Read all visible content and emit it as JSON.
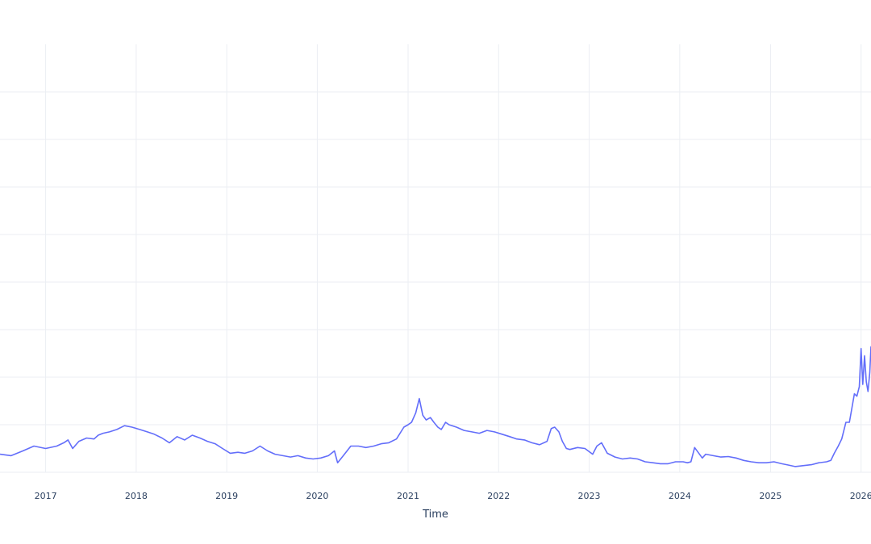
{
  "chart_data": {
    "type": "line",
    "title": "",
    "xlabel": "Time",
    "ylabel": "",
    "grid": true,
    "legend": "none",
    "x_ticks": [
      "2017",
      "2018",
      "2019",
      "2020",
      "2021",
      "2022",
      "2023",
      "2024",
      "2025",
      "2026"
    ],
    "xlim": [
      "2016-07-01",
      "2026-02-10"
    ],
    "ylim": [
      0,
      9
    ],
    "y_grid_values": [
      0,
      1,
      2,
      3,
      4,
      5,
      6,
      7,
      8
    ],
    "series": [
      {
        "color": "#636efa",
        "x": [
          "2016-07-01",
          "2016-08-15",
          "2016-10-01",
          "2016-11-15",
          "2017-01-01",
          "2017-02-15",
          "2017-03-15",
          "2017-04-01",
          "2017-04-20",
          "2017-05-15",
          "2017-06-15",
          "2017-07-15",
          "2017-08-01",
          "2017-08-20",
          "2017-09-15",
          "2017-10-15",
          "2017-11-15",
          "2017-12-15",
          "2018-01-15",
          "2018-02-15",
          "2018-03-15",
          "2018-04-15",
          "2018-05-15",
          "2018-06-15",
          "2018-07-15",
          "2018-08-15",
          "2018-09-15",
          "2018-10-15",
          "2018-11-15",
          "2018-12-15",
          "2019-01-15",
          "2019-02-15",
          "2019-03-15",
          "2019-04-15",
          "2019-05-15",
          "2019-06-15",
          "2019-07-15",
          "2019-08-15",
          "2019-09-15",
          "2019-10-15",
          "2019-11-15",
          "2019-12-15",
          "2020-01-15",
          "2020-02-15",
          "2020-03-10",
          "2020-03-23",
          "2020-04-15",
          "2020-05-15",
          "2020-06-15",
          "2020-07-15",
          "2020-08-15",
          "2020-09-15",
          "2020-10-15",
          "2020-11-15",
          "2020-12-15",
          "2021-01-01",
          "2021-01-15",
          "2021-02-01",
          "2021-02-15",
          "2021-03-01",
          "2021-03-15",
          "2021-04-01",
          "2021-04-15",
          "2021-05-01",
          "2021-05-15",
          "2021-06-01",
          "2021-06-15",
          "2021-07-15",
          "2021-08-15",
          "2021-09-15",
          "2021-10-15",
          "2021-11-15",
          "2021-12-15",
          "2022-01-15",
          "2022-02-15",
          "2022-03-15",
          "2022-04-15",
          "2022-05-15",
          "2022-06-15",
          "2022-07-15",
          "2022-08-01",
          "2022-08-15",
          "2022-09-01",
          "2022-09-15",
          "2022-10-01",
          "2022-10-15",
          "2022-11-15",
          "2022-12-15",
          "2023-01-15",
          "2023-02-01",
          "2023-02-20",
          "2023-03-15",
          "2023-04-15",
          "2023-05-15",
          "2023-06-15",
          "2023-07-15",
          "2023-08-15",
          "2023-09-15",
          "2023-10-15",
          "2023-11-15",
          "2023-12-15",
          "2024-01-15",
          "2024-02-01",
          "2024-02-15",
          "2024-03-01",
          "2024-03-15",
          "2024-04-01",
          "2024-04-15",
          "2024-05-15",
          "2024-06-15",
          "2024-07-15",
          "2024-08-15",
          "2024-09-15",
          "2024-10-15",
          "2024-11-15",
          "2024-12-15",
          "2025-01-15",
          "2025-02-15",
          "2025-03-15",
          "2025-04-10",
          "2025-05-15",
          "2025-06-15",
          "2025-07-15",
          "2025-08-15",
          "2025-09-01",
          "2025-09-15",
          "2025-10-01",
          "2025-10-15",
          "2025-11-01",
          "2025-11-15",
          "2025-11-25",
          "2025-12-05",
          "2025-12-15",
          "2025-12-25",
          "2026-01-01",
          "2026-01-08",
          "2026-01-15",
          "2026-01-22",
          "2026-01-29",
          "2026-02-05",
          "2026-02-10"
        ],
        "y": [
          0.38,
          0.35,
          0.45,
          0.55,
          0.5,
          0.55,
          0.62,
          0.68,
          0.5,
          0.65,
          0.72,
          0.7,
          0.78,
          0.82,
          0.85,
          0.9,
          0.98,
          0.95,
          0.9,
          0.85,
          0.8,
          0.72,
          0.62,
          0.75,
          0.68,
          0.78,
          0.72,
          0.65,
          0.6,
          0.5,
          0.4,
          0.42,
          0.4,
          0.45,
          0.55,
          0.45,
          0.38,
          0.35,
          0.32,
          0.35,
          0.3,
          0.28,
          0.3,
          0.35,
          0.45,
          0.2,
          0.35,
          0.55,
          0.55,
          0.52,
          0.55,
          0.6,
          0.62,
          0.7,
          0.95,
          1.0,
          1.05,
          1.25,
          1.55,
          1.2,
          1.1,
          1.15,
          1.05,
          0.95,
          0.9,
          1.05,
          1.0,
          0.95,
          0.88,
          0.85,
          0.82,
          0.88,
          0.85,
          0.8,
          0.75,
          0.7,
          0.68,
          0.62,
          0.58,
          0.65,
          0.92,
          0.95,
          0.85,
          0.65,
          0.5,
          0.48,
          0.52,
          0.5,
          0.38,
          0.55,
          0.62,
          0.4,
          0.32,
          0.28,
          0.3,
          0.28,
          0.22,
          0.2,
          0.18,
          0.18,
          0.22,
          0.22,
          0.2,
          0.22,
          0.52,
          0.42,
          0.3,
          0.38,
          0.35,
          0.32,
          0.33,
          0.3,
          0.25,
          0.22,
          0.2,
          0.2,
          0.22,
          0.18,
          0.15,
          0.12,
          0.14,
          0.16,
          0.2,
          0.22,
          0.25,
          0.4,
          0.55,
          0.7,
          1.05,
          1.05,
          1.35,
          1.65,
          1.6,
          1.8,
          2.6,
          1.85,
          2.45,
          1.9,
          1.7,
          2.1,
          2.65
        ]
      }
    ]
  }
}
